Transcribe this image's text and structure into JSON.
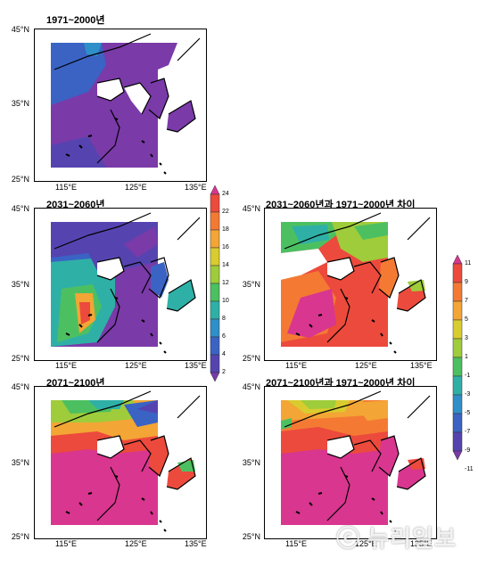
{
  "panels": {
    "p1": {
      "title": "1971~2000년"
    },
    "p2": {
      "title": "2031~2060년"
    },
    "p3": {
      "title": "2071~2100년"
    },
    "p4": {
      "title": "2031~2060년과 1971~2000년 차이"
    },
    "p5": {
      "title": "2071~2100년과 1971~2000년 차이"
    }
  },
  "axes": {
    "lat_labels": [
      "45°N",
      "35°N",
      "25°N"
    ],
    "lon_labels": [
      "115°E",
      "125°E",
      "135°E"
    ]
  },
  "colorbar_absolute": {
    "labels": [
      "24",
      "22",
      "18",
      "16",
      "14",
      "12",
      "10",
      "8",
      "6",
      "4",
      "2"
    ],
    "colors": [
      "#d9368f",
      "#ec4a3c",
      "#f47a34",
      "#f3a535",
      "#d9cc2e",
      "#9fcc3a",
      "#4cc061",
      "#2fb0a6",
      "#2f8fc8",
      "#3a63c4",
      "#5544b0",
      "#7a3aa8"
    ]
  },
  "colorbar_difference": {
    "labels": [
      "11",
      "9",
      "7",
      "5",
      "3",
      "1",
      "-1",
      "-3",
      "-5",
      "-7",
      "-9",
      "-11"
    ],
    "colors": [
      "#d9368f",
      "#ec4a3c",
      "#f47a34",
      "#f3a535",
      "#d9cc2e",
      "#9fcc3a",
      "#4cc061",
      "#2fb0a6",
      "#2f8fc8",
      "#3a63c4",
      "#5544b0",
      "#7a3aa8"
    ]
  },
  "watermark": "ⓒ 뉴리일보"
}
